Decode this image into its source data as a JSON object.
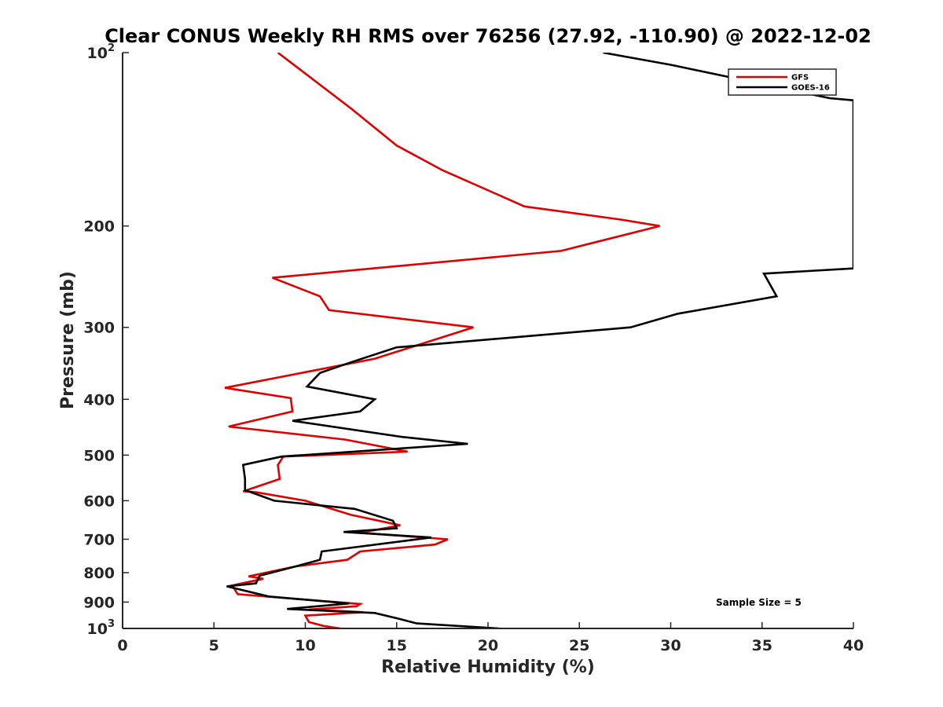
{
  "chart_data": {
    "type": "line",
    "title": "Clear CONUS Weekly RH RMS over 76256 (27.92, -110.90) @ 2022-12-02",
    "xlabel": "Relative Humidity (%)",
    "ylabel": "Pressure (mb)",
    "xlim": [
      0,
      40
    ],
    "ylim": [
      100,
      1000
    ],
    "yscale": "log",
    "yreversed": true,
    "xticks": [
      {
        "value": 0,
        "label": "0"
      },
      {
        "value": 5,
        "label": "5"
      },
      {
        "value": 10,
        "label": "10"
      },
      {
        "value": 15,
        "label": "15"
      },
      {
        "value": 20,
        "label": "20"
      },
      {
        "value": 25,
        "label": "25"
      },
      {
        "value": 30,
        "label": "30"
      },
      {
        "value": 35,
        "label": "35"
      },
      {
        "value": 40,
        "label": "40"
      }
    ],
    "yticks": [
      {
        "value": 100,
        "base": "10",
        "exp": "2"
      },
      {
        "value": 200,
        "label": "200"
      },
      {
        "value": 300,
        "label": "300"
      },
      {
        "value": 400,
        "label": "400"
      },
      {
        "value": 500,
        "label": "500"
      },
      {
        "value": 600,
        "label": "600"
      },
      {
        "value": 700,
        "label": "700"
      },
      {
        "value": 800,
        "label": "800"
      },
      {
        "value": 900,
        "label": "900"
      },
      {
        "value": 1000,
        "base": "10",
        "exp": "3"
      }
    ],
    "legend_position": "top-right",
    "annotation": "Sample Size = 5",
    "series": [
      {
        "name": "GFS",
        "color": "#e00000",
        "points": [
          [
            8.5,
            100
          ],
          [
            12.5,
            125
          ],
          [
            15,
            145
          ],
          [
            17.5,
            160
          ],
          [
            22,
            185
          ],
          [
            27.3,
            195
          ],
          [
            29.4,
            200
          ],
          [
            24,
            221
          ],
          [
            8.2,
            246
          ],
          [
            10.8,
            265
          ],
          [
            11.3,
            280
          ],
          [
            19.2,
            300
          ],
          [
            13.8,
            340
          ],
          [
            5.6,
            382
          ],
          [
            9.2,
            398
          ],
          [
            9.3,
            420
          ],
          [
            5.8,
            446
          ],
          [
            12.2,
            470
          ],
          [
            15.6,
            493
          ],
          [
            8.8,
            503
          ],
          [
            8.5,
            520
          ],
          [
            8.6,
            550
          ],
          [
            6.6,
            578
          ],
          [
            7.3,
            580
          ],
          [
            10,
            600
          ],
          [
            12.5,
            635
          ],
          [
            15.2,
            662
          ],
          [
            13,
            682
          ],
          [
            17.8,
            700
          ],
          [
            17.1,
            715
          ],
          [
            13,
            735
          ],
          [
            12.3,
            760
          ],
          [
            9.5,
            780
          ],
          [
            6.9,
            812
          ],
          [
            7.7,
            820
          ],
          [
            6,
            842
          ],
          [
            6.3,
            872
          ],
          [
            13,
            907
          ],
          [
            12.8,
            915
          ],
          [
            10.2,
            927
          ],
          [
            13.2,
            937
          ],
          [
            10,
            950
          ],
          [
            10.2,
            975
          ],
          [
            11,
            990
          ],
          [
            11.9,
            1000
          ]
        ]
      },
      {
        "name": "GOES-16",
        "color": "#000000",
        "points": [
          [
            26.3,
            100
          ],
          [
            30,
            105
          ],
          [
            38.7,
            120
          ],
          [
            40,
            121
          ],
          [
            40,
            237
          ],
          [
            35.1,
            242
          ],
          [
            35.8,
            265
          ],
          [
            30.4,
            284
          ],
          [
            27.8,
            300
          ],
          [
            15,
            325
          ],
          [
            12.5,
            345
          ],
          [
            10.8,
            360
          ],
          [
            10.1,
            380
          ],
          [
            13.8,
            400
          ],
          [
            13,
            420
          ],
          [
            9.3,
            436
          ],
          [
            15.3,
            465
          ],
          [
            18.9,
            478
          ],
          [
            8.7,
            503
          ],
          [
            6.6,
            520
          ],
          [
            6.7,
            550
          ],
          [
            6.7,
            575
          ],
          [
            8.3,
            600
          ],
          [
            12.7,
            620
          ],
          [
            14.8,
            650
          ],
          [
            15,
            670
          ],
          [
            12.1,
            680
          ],
          [
            16.9,
            695
          ],
          [
            15.4,
            705
          ],
          [
            10.9,
            735
          ],
          [
            10.8,
            760
          ],
          [
            9.5,
            780
          ],
          [
            7.5,
            810
          ],
          [
            7.3,
            835
          ],
          [
            5.7,
            845
          ],
          [
            8,
            880
          ],
          [
            12.4,
            905
          ],
          [
            9,
            925
          ],
          [
            13.8,
            940
          ],
          [
            15,
            960
          ],
          [
            16.1,
            980
          ],
          [
            20.6,
            1000
          ]
        ]
      }
    ]
  }
}
